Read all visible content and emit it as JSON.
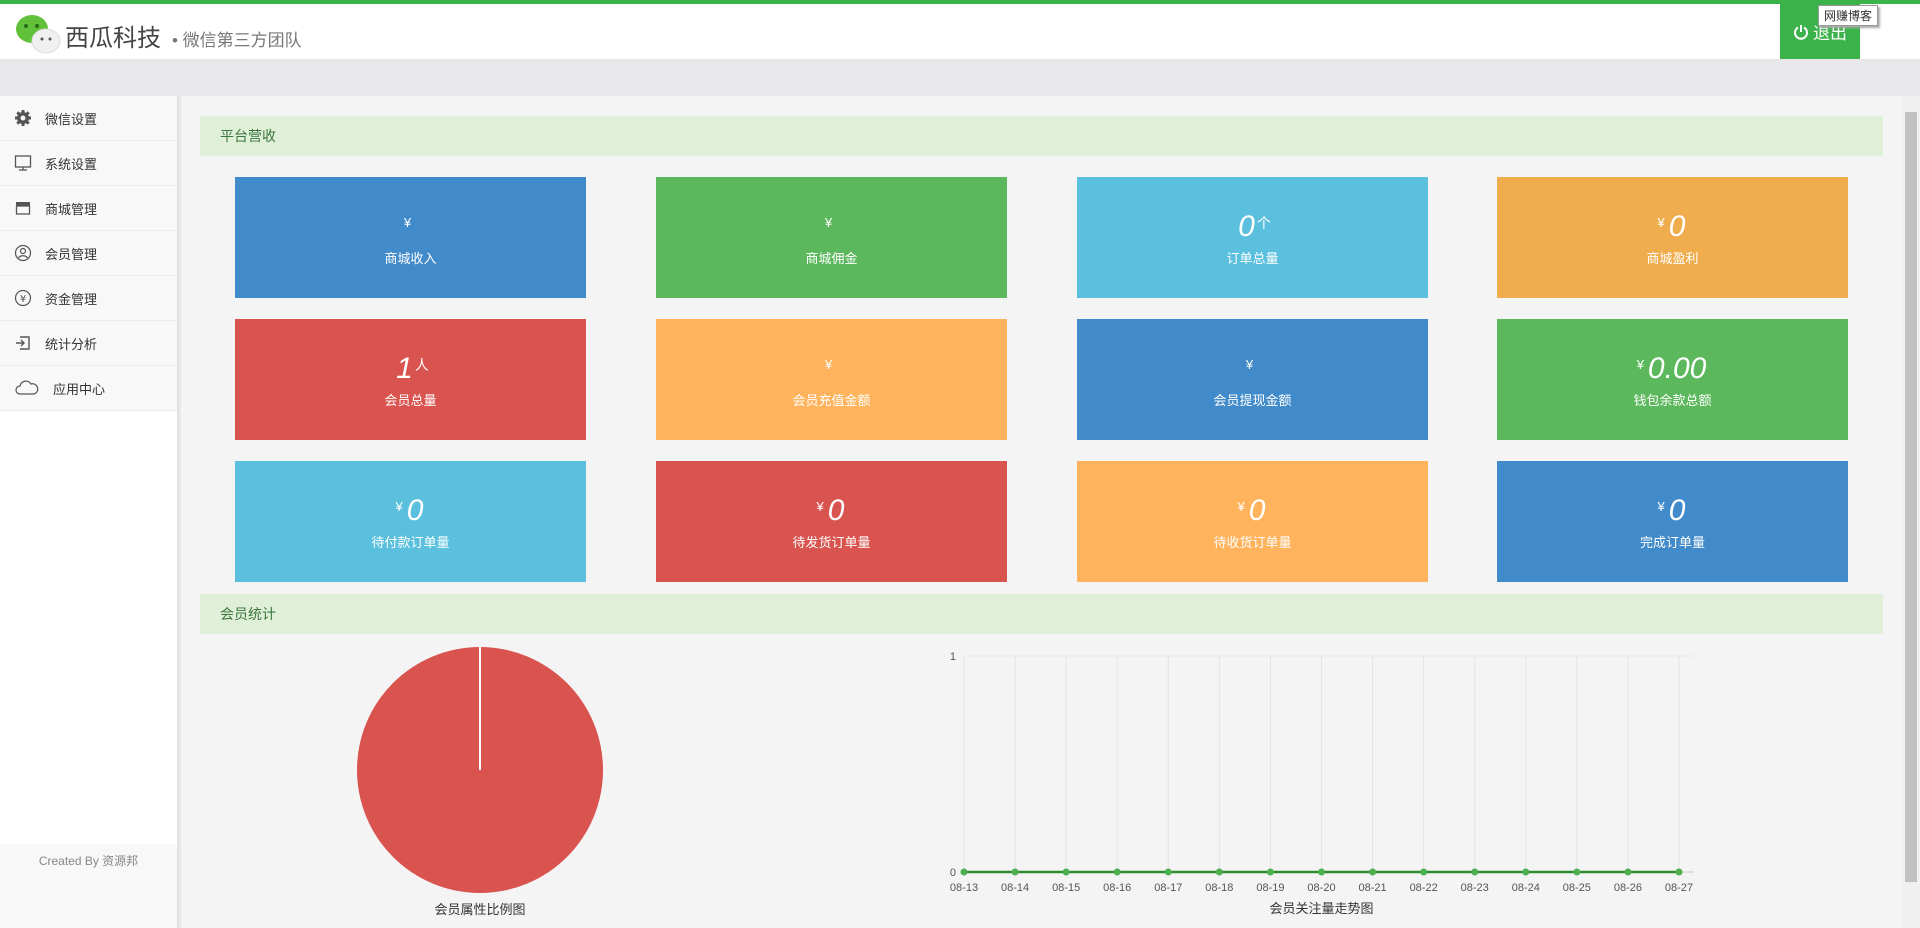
{
  "header": {
    "brand": "西瓜科技",
    "slogan": "• 微信第三方团队",
    "logout": "退出",
    "tooltip": "网赚博客"
  },
  "sidebar": {
    "items": [
      {
        "label": "微信设置",
        "icon": "gear-icon"
      },
      {
        "label": "系统设置",
        "icon": "monitor-icon"
      },
      {
        "label": "商城管理",
        "icon": "store-icon"
      },
      {
        "label": "会员管理",
        "icon": "user-icon"
      },
      {
        "label": "资金管理",
        "icon": "yen-icon"
      },
      {
        "label": "统计分析",
        "icon": "login-icon"
      },
      {
        "label": "应用中心",
        "icon": "cloud-icon"
      }
    ],
    "footer": "Created By 资源邦"
  },
  "sections": {
    "revenue": "平台营收",
    "members": "会员统计"
  },
  "cards": [
    {
      "prefix": "¥",
      "value": "",
      "unit": "",
      "label": "商城收入",
      "color": "#428bca"
    },
    {
      "prefix": "¥",
      "value": "",
      "unit": "",
      "label": "商城佣金",
      "color": "#5cb85c"
    },
    {
      "prefix": "",
      "value": "0",
      "unit": "个",
      "label": "订单总量",
      "color": "#5bc0de"
    },
    {
      "prefix": "¥",
      "value": "0",
      "unit": "",
      "label": "商城盈利",
      "color": "#f0ad4e"
    },
    {
      "prefix": "",
      "value": "1",
      "unit": "人",
      "label": "会员总量",
      "color": "#d9534f"
    },
    {
      "prefix": "¥",
      "value": "",
      "unit": "",
      "label": "会员充值金额",
      "color": "#ffb35c"
    },
    {
      "prefix": "¥",
      "value": "",
      "unit": "",
      "label": "会员提现金额",
      "color": "#428bca"
    },
    {
      "prefix": "¥",
      "value": "0.00",
      "unit": "",
      "label": "钱包余款总额",
      "color": "#5cb85c"
    },
    {
      "prefix": "¥",
      "value": "0",
      "unit": "",
      "label": "待付款订单量",
      "color": "#5bc0de"
    },
    {
      "prefix": "¥",
      "value": "0",
      "unit": "",
      "label": "待发货订单量",
      "color": "#d9534f"
    },
    {
      "prefix": "¥",
      "value": "0",
      "unit": "",
      "label": "待收货订单量",
      "color": "#ffb35c"
    },
    {
      "prefix": "¥",
      "value": "0",
      "unit": "",
      "label": "完成订单量",
      "color": "#428bca"
    }
  ],
  "chart_data": [
    {
      "type": "pie",
      "title": "会员属性比例图",
      "slices": [
        {
          "name": "",
          "value": 1,
          "color": "#d9534f"
        }
      ]
    },
    {
      "type": "line",
      "title": "会员关注量走势图",
      "categories": [
        "08-13",
        "08-14",
        "08-15",
        "08-16",
        "08-17",
        "08-18",
        "08-19",
        "08-20",
        "08-21",
        "08-22",
        "08-23",
        "08-24",
        "08-25",
        "08-26",
        "08-27"
      ],
      "series": [
        {
          "name": "",
          "values": [
            0,
            0,
            0,
            0,
            0,
            0,
            0,
            0,
            0,
            0,
            0,
            0,
            0,
            0,
            0
          ],
          "color": "#2e8b2e"
        }
      ],
      "ylim": [
        0,
        1
      ],
      "yticks": [
        "0",
        "1"
      ],
      "grid": true
    }
  ]
}
